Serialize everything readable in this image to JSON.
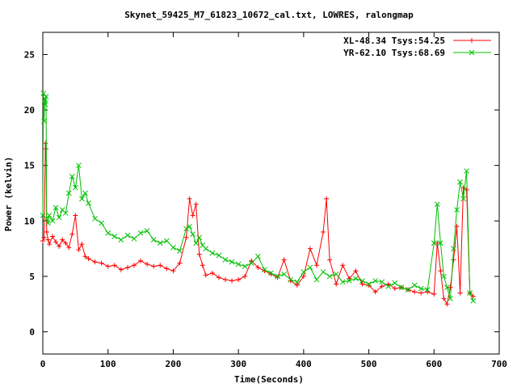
{
  "chart_data": {
    "type": "line",
    "title": "Skynet_59425_M7_61823_10672_cal.txt, LOWRES, ralongmap",
    "xlabel": "Time(Seconds)",
    "ylabel": "Power (kelvin)",
    "xlim": [
      0,
      700
    ],
    "ylim": [
      -2,
      27
    ],
    "xticks": [
      0,
      100,
      200,
      300,
      400,
      500,
      600,
      700
    ],
    "yticks": [
      0,
      5,
      10,
      15,
      20,
      25
    ],
    "grid": false,
    "legend_position": "top-right",
    "series": [
      {
        "name": "XL-48.34 Tsys:54.25",
        "color": "#ff0000",
        "marker": "+",
        "x": [
          0,
          2,
          4,
          5,
          6,
          8,
          10,
          15,
          20,
          25,
          30,
          35,
          40,
          45,
          50,
          55,
          60,
          65,
          70,
          80,
          90,
          100,
          110,
          120,
          130,
          140,
          150,
          160,
          170,
          180,
          190,
          200,
          210,
          220,
          225,
          230,
          235,
          240,
          245,
          250,
          260,
          270,
          280,
          290,
          300,
          310,
          320,
          330,
          340,
          350,
          360,
          370,
          380,
          390,
          400,
          410,
          420,
          430,
          435,
          440,
          450,
          460,
          470,
          480,
          490,
          500,
          510,
          520,
          530,
          540,
          550,
          560,
          570,
          580,
          590,
          600,
          605,
          610,
          615,
          620,
          625,
          630,
          635,
          640,
          645,
          650,
          655,
          660
        ],
        "y": [
          8.2,
          8.5,
          17.0,
          16.5,
          9.0,
          8.3,
          7.9,
          8.6,
          8.1,
          7.7,
          8.3,
          8.0,
          7.6,
          8.8,
          10.5,
          7.4,
          7.9,
          6.8,
          6.6,
          6.3,
          6.2,
          5.9,
          6.0,
          5.6,
          5.8,
          6.0,
          6.4,
          6.1,
          5.9,
          6.0,
          5.7,
          5.5,
          6.2,
          8.5,
          12.0,
          10.5,
          11.5,
          7.0,
          6.0,
          5.1,
          5.3,
          4.9,
          4.7,
          4.6,
          4.7,
          5.0,
          6.4,
          5.8,
          5.5,
          5.2,
          4.9,
          6.5,
          4.6,
          4.2,
          5.0,
          7.5,
          6.0,
          9.0,
          12.0,
          6.5,
          4.3,
          6.0,
          4.8,
          5.5,
          4.3,
          4.2,
          3.6,
          4.1,
          4.3,
          3.9,
          4.0,
          3.8,
          3.6,
          3.5,
          3.6,
          3.4,
          8.0,
          5.5,
          3.0,
          2.5,
          4.0,
          6.5,
          9.5,
          3.5,
          13.0,
          12.8,
          3.5,
          3.2
        ]
      },
      {
        "name": "YR-62.10 Tsys:68.69",
        "color": "#00c000",
        "marker": "x",
        "x": [
          0,
          1,
          2,
          3,
          4,
          5,
          6,
          8,
          10,
          15,
          20,
          25,
          30,
          35,
          40,
          45,
          50,
          55,
          60,
          65,
          70,
          80,
          90,
          100,
          110,
          120,
          130,
          140,
          150,
          160,
          170,
          180,
          190,
          200,
          210,
          220,
          225,
          230,
          235,
          240,
          245,
          250,
          260,
          270,
          280,
          290,
          300,
          310,
          320,
          330,
          340,
          350,
          360,
          370,
          380,
          390,
          400,
          410,
          420,
          430,
          440,
          450,
          460,
          470,
          480,
          490,
          500,
          510,
          520,
          530,
          540,
          550,
          560,
          570,
          580,
          590,
          600,
          605,
          610,
          615,
          620,
          625,
          630,
          635,
          640,
          645,
          650,
          655,
          660
        ],
        "y": [
          10.5,
          21.5,
          19.0,
          21.0,
          20.5,
          21.2,
          10.2,
          9.8,
          10.5,
          10.0,
          11.2,
          10.3,
          11.0,
          10.7,
          12.5,
          14.0,
          13.0,
          15.0,
          12.0,
          12.5,
          11.6,
          10.2,
          9.8,
          8.9,
          8.6,
          8.3,
          8.7,
          8.4,
          8.9,
          9.1,
          8.3,
          8.0,
          8.2,
          7.6,
          7.3,
          9.3,
          9.5,
          8.8,
          8.0,
          8.5,
          7.8,
          7.5,
          7.1,
          6.9,
          6.5,
          6.3,
          6.1,
          5.9,
          6.2,
          6.8,
          5.6,
          5.3,
          5.0,
          5.2,
          4.7,
          4.5,
          5.4,
          5.8,
          4.7,
          5.4,
          5.0,
          5.2,
          4.5,
          4.6,
          4.8,
          4.6,
          4.3,
          4.6,
          4.5,
          4.1,
          4.4,
          4.0,
          3.8,
          4.2,
          3.9,
          3.8,
          8.0,
          11.5,
          8.0,
          5.0,
          4.0,
          3.0,
          7.5,
          11.0,
          13.5,
          12.0,
          14.5,
          3.5,
          2.8
        ]
      }
    ]
  }
}
